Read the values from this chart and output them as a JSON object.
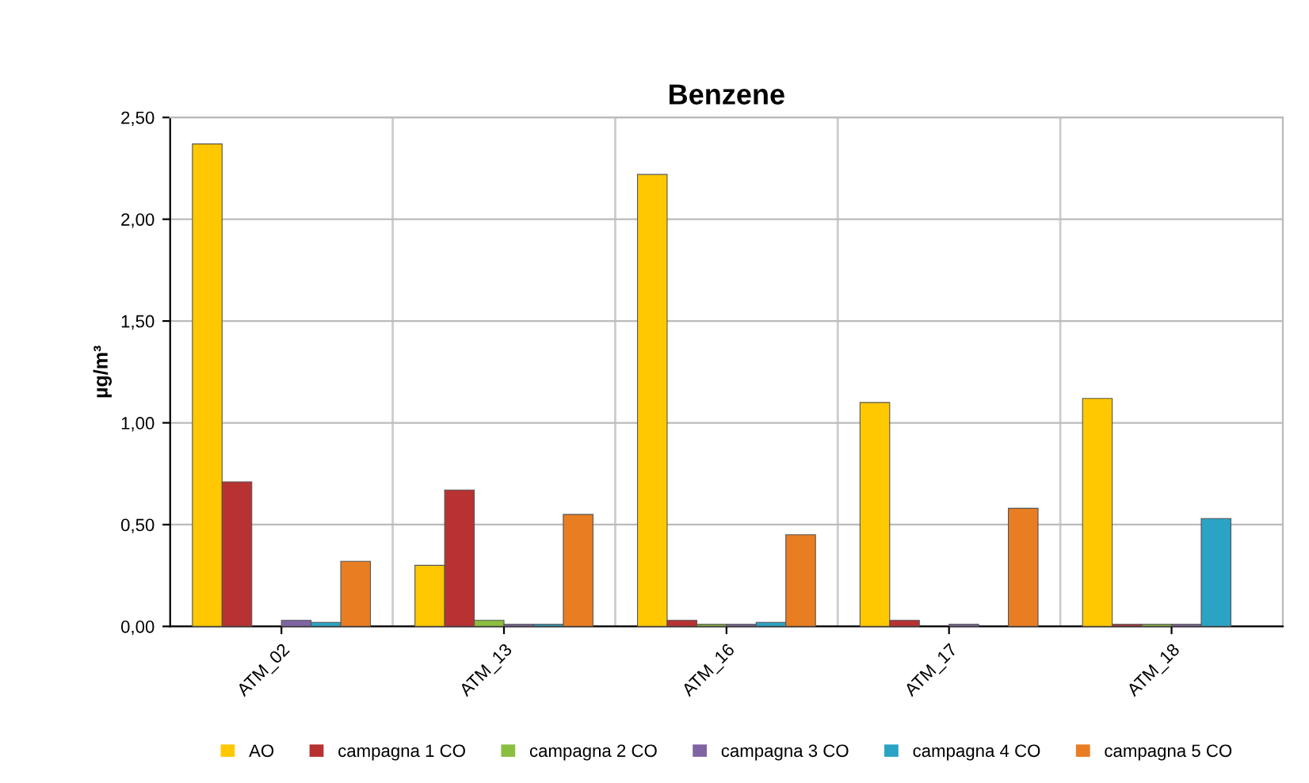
{
  "chart_data": {
    "type": "bar",
    "title": "Benzene",
    "ylabel": "µg/m³",
    "categories": [
      "ATM_02",
      "ATM_13",
      "ATM_16",
      "ATM_17",
      "ATM_18"
    ],
    "series": [
      {
        "name": "AO",
        "color": "#ffc800",
        "values": [
          2.37,
          0.3,
          2.22,
          1.1,
          1.12
        ]
      },
      {
        "name": "campagna 1 CO",
        "color": "#b83232",
        "values": [
          0.71,
          0.67,
          0.03,
          0.03,
          0.01
        ]
      },
      {
        "name": "campagna 2 CO",
        "color": "#8cbf3f",
        "values": [
          null,
          0.03,
          0.01,
          null,
          0.01
        ]
      },
      {
        "name": "campagna 3 CO",
        "color": "#8064a2",
        "values": [
          0.03,
          0.01,
          0.01,
          0.01,
          0.01
        ]
      },
      {
        "name": "campagna 4 CO",
        "color": "#2ba3c4",
        "values": [
          0.02,
          0.01,
          0.02,
          null,
          0.53
        ]
      },
      {
        "name": "campagna 5 CO",
        "color": "#e87d22",
        "values": [
          0.32,
          0.55,
          0.45,
          0.58,
          null
        ]
      }
    ],
    "ylim": [
      0,
      2.5
    ],
    "yticks": [
      {
        "value": 0,
        "label": "0,00"
      },
      {
        "value": 0.5,
        "label": "0,50"
      },
      {
        "value": 1,
        "label": "1,00"
      },
      {
        "value": 1.5,
        "label": "1,50"
      },
      {
        "value": 2,
        "label": "2,00"
      },
      {
        "value": 2.5,
        "label": "2,50"
      }
    ],
    "grid": true,
    "legend": "bottom"
  }
}
